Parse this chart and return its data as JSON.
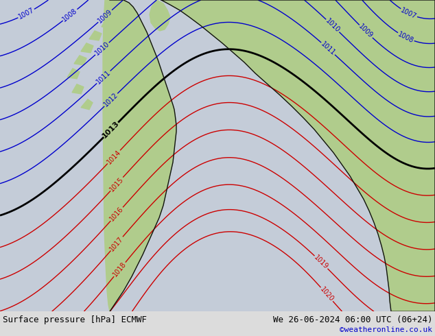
{
  "title_left": "Surface pressure [hPa] ECMWF",
  "title_right": "We 26-06-2024 06:00 UTC (06+24)",
  "copyright": "©weatheronline.co.uk",
  "bg_color": "#c8d0dc",
  "sea_color": "#c4ccd8",
  "land_color": "#b0cc8c",
  "border_color": "#111111",
  "blue_color": "#0000cc",
  "red_color": "#cc0000",
  "black_color": "#000000",
  "bottom_bg": "#dcdcdc",
  "bottom_text": "#000000",
  "copyright_color": "#0000cc",
  "figsize": [
    6.34,
    4.9
  ],
  "dpi": 100,
  "blue_levels": [
    1007,
    1008,
    1009,
    1010,
    1011,
    1012
  ],
  "red_levels": [
    1014,
    1015,
    1016,
    1017,
    1018,
    1019,
    1020
  ],
  "black_levels": [
    1013
  ]
}
